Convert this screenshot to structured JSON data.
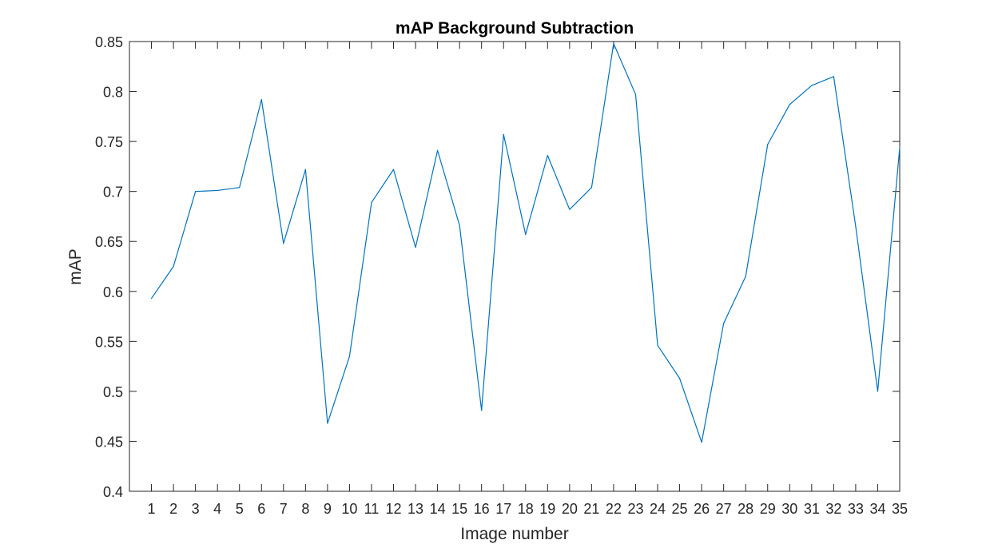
{
  "chart_data": {
    "type": "line",
    "title": "mAP Background Subtraction",
    "xlabel": "Image number",
    "ylabel": "mAP",
    "xlim": [
      0,
      35
    ],
    "ylim": [
      0.4,
      0.85
    ],
    "x_ticks": [
      1,
      2,
      3,
      4,
      5,
      6,
      7,
      8,
      9,
      10,
      11,
      12,
      13,
      14,
      15,
      16,
      17,
      18,
      19,
      20,
      21,
      22,
      23,
      24,
      25,
      26,
      27,
      28,
      29,
      30,
      31,
      32,
      33,
      34,
      35
    ],
    "y_ticks": [
      0.4,
      0.45,
      0.5,
      0.55,
      0.6,
      0.65,
      0.7,
      0.75,
      0.8,
      0.85
    ],
    "y_tick_labels": [
      "0.4",
      "0.45",
      "0.5",
      "0.55",
      "0.6",
      "0.65",
      "0.7",
      "0.75",
      "0.8",
      "0.85"
    ],
    "grid": false,
    "series": [
      {
        "color": "#0072bd",
        "x": [
          1,
          2,
          3,
          4,
          5,
          6,
          7,
          8,
          9,
          10,
          11,
          12,
          13,
          14,
          15,
          16,
          17,
          18,
          19,
          20,
          21,
          22,
          23,
          24,
          25,
          26,
          27,
          28,
          29,
          30,
          31,
          32,
          33,
          34,
          35
        ],
        "values": [
          0.593,
          0.625,
          0.7,
          0.701,
          0.704,
          0.792,
          0.648,
          0.722,
          0.468,
          0.535,
          0.689,
          0.722,
          0.644,
          0.741,
          0.666,
          0.481,
          0.757,
          0.657,
          0.736,
          0.682,
          0.704,
          0.848,
          0.797,
          0.546,
          0.513,
          0.449,
          0.568,
          0.615,
          0.747,
          0.787,
          0.806,
          0.815,
          0.665,
          0.5,
          0.744
        ]
      }
    ]
  }
}
